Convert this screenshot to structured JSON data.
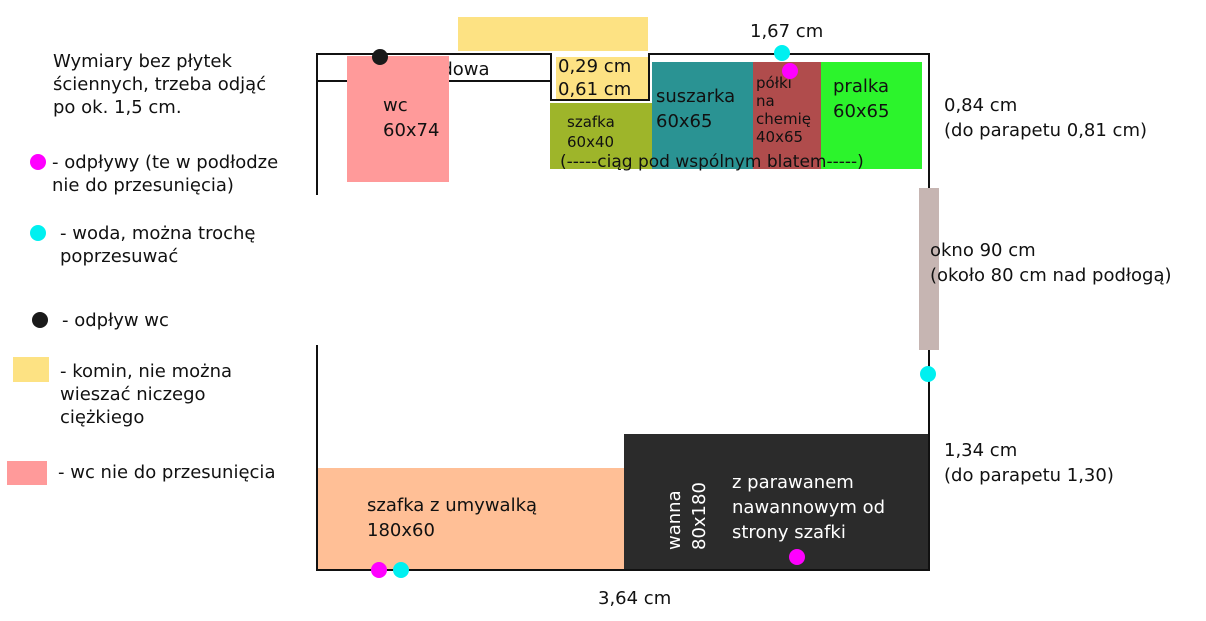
{
  "legend": {
    "note": "Wymiary bez płytek\nściennych, trzeba odjąć\npo ok. 1,5 cm.",
    "items": [
      {
        "symbol": "magenta-dot",
        "text": "- odpływy (te w podłodze\nnie do przesunięcia)"
      },
      {
        "symbol": "cyan-dot",
        "text": "- woda, można trochę\npoprzesuwać"
      },
      {
        "symbol": "black-dot",
        "text": "- odpływ wc"
      },
      {
        "symbol": "yellow-rect",
        "text": "- komin, nie można\nwieszać niczego\nciężkiego"
      },
      {
        "symbol": "pink-rect",
        "text": "- wc nie do przesunięcia"
      }
    ]
  },
  "colors": {
    "chimney": "#fde283",
    "wc": "#ff9a9a",
    "cabinet_small": "#9eb52a",
    "dryer": "#2a9393",
    "shelves": "#b04c4c",
    "washer": "#2cf42c",
    "window": "#c6b5b2",
    "sink_cabinet": "#ffbf96",
    "bathtub": "#2b2b2b",
    "drain": "#ff00ff",
    "water": "#00f0f0",
    "wc_drain": "#1a1a1a"
  },
  "plan": {
    "zabudowa": "zabudowa",
    "wc": "wc\n60x74",
    "chimney_dims": "0,29 cm\n0,61 cm",
    "cabinet_small": "szafka\n60x40",
    "dryer": "suszarka\n60x65",
    "shelves": "półki\nna\nchemię\n40x65",
    "washer": "pralka\n60x65",
    "worktop_note": "(-----ciąg pod wspólnym blatem-----)",
    "top_dim": "1,67 cm",
    "right_top_dim": "0,84 cm\n(do parapetu 0,81 cm)",
    "window": "okno 90 cm\n(około 80 cm nad podłogą)",
    "right_bottom_dim": "1,34 cm\n(do parapetu 1,30)",
    "sink_cabinet": "szafka z umywalką\n180x60",
    "bathtub_size": "wanna\n80x180",
    "bathtub_note": "z parawanem\nnawannowym od\nstrony szafki",
    "bottom_dim": "3,64 cm"
  }
}
